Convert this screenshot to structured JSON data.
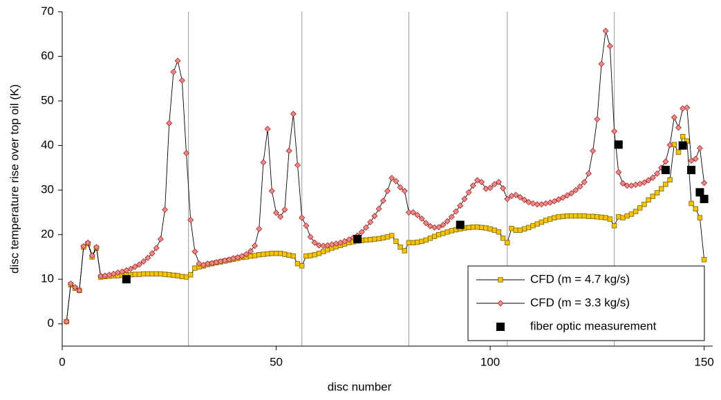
{
  "chart_data": {
    "type": "line",
    "xlabel": "disc number",
    "ylabel": "disc temperature rise over top oil (K)",
    "x": [
      1,
      2,
      3,
      4,
      5,
      6,
      7,
      8,
      9,
      10,
      11,
      12,
      13,
      14,
      15,
      16,
      17,
      18,
      19,
      20,
      21,
      22,
      23,
      24,
      25,
      26,
      27,
      28,
      29,
      30,
      31,
      32,
      33,
      34,
      35,
      36,
      37,
      38,
      39,
      40,
      41,
      42,
      43,
      44,
      45,
      46,
      47,
      48,
      49,
      50,
      51,
      52,
      53,
      54,
      55,
      56,
      57,
      58,
      59,
      60,
      61,
      62,
      63,
      64,
      65,
      66,
      67,
      68,
      69,
      70,
      71,
      72,
      73,
      74,
      75,
      76,
      77,
      78,
      79,
      80,
      81,
      82,
      83,
      84,
      85,
      86,
      87,
      88,
      89,
      90,
      91,
      92,
      93,
      94,
      95,
      96,
      97,
      98,
      99,
      100,
      101,
      102,
      103,
      104,
      105,
      106,
      107,
      108,
      109,
      110,
      111,
      112,
      113,
      114,
      115,
      116,
      117,
      118,
      119,
      120,
      121,
      122,
      123,
      124,
      125,
      126,
      127,
      128,
      129,
      130,
      131,
      132,
      133,
      134,
      135,
      136,
      137,
      138,
      139,
      140,
      141,
      142,
      143,
      144,
      145,
      146,
      147,
      148,
      149,
      150
    ],
    "series": [
      {
        "name": "CFD (m = 4.7 kg/s)",
        "color": "#f5c400",
        "edge": "#7a6000",
        "marker": "square",
        "values": [
          0.5,
          8.8,
          8,
          7.5,
          17.2,
          18,
          15,
          17,
          10.5,
          10.6,
          10.7,
          10.8,
          10.8,
          10.9,
          11,
          11,
          11.1,
          11.1,
          11.2,
          11.2,
          11.2,
          11.2,
          11.2,
          11.1,
          11,
          10.9,
          10.8,
          10.6,
          10.5,
          11,
          12.5,
          12.8,
          13,
          13.3,
          13.5,
          13.7,
          13.9,
          14.1,
          14.3,
          14.5,
          14.7,
          14.9,
          15,
          15.2,
          15.3,
          15.5,
          15.6,
          15.7,
          15.8,
          15.8,
          15.8,
          15.6,
          15.4,
          15.2,
          13.5,
          13,
          15.2,
          15.3,
          15.5,
          15.8,
          16.2,
          16.6,
          17,
          17.3,
          17.6,
          17.9,
          18.2,
          18.4,
          18.6,
          18.7,
          18.8,
          18.9,
          19,
          19.1,
          19.3,
          19.5,
          19.8,
          18.5,
          17.2,
          16.4,
          18.2,
          18.2,
          18.3,
          18.5,
          18.8,
          19.2,
          19.6,
          20,
          20.3,
          20.6,
          20.9,
          21.1,
          21.3,
          21.5,
          21.6,
          21.7,
          21.7,
          21.6,
          21.5,
          21.3,
          21,
          20.6,
          19.2,
          18.2,
          21.4,
          21,
          21,
          21.3,
          21.6,
          22,
          22.4,
          22.8,
          23.2,
          23.5,
          23.8,
          24,
          24.1,
          24.2,
          24.2,
          24.2,
          24.2,
          24.2,
          24.1,
          24.1,
          24,
          23.9,
          23.8,
          23.5,
          22,
          24,
          23.8,
          24.2,
          24.6,
          25.2,
          26,
          26.8,
          27.8,
          28.6,
          29.4,
          30.3,
          31.3,
          32.3,
          40.2,
          38.5,
          42,
          41,
          27,
          25.8,
          23.8,
          14.4
        ]
      },
      {
        "name": "CFD (m = 3.3 kg/s)",
        "color": "#f08a8a",
        "edge": "#a02828",
        "marker": "diamond",
        "values": [
          0.5,
          9,
          8.2,
          7.5,
          17.4,
          18.2,
          15.3,
          17.2,
          10.7,
          10.8,
          11,
          11.2,
          11.5,
          11.7,
          12,
          12.3,
          12.8,
          13.3,
          14,
          14.8,
          15.8,
          17,
          19,
          25.6,
          45,
          56.5,
          59,
          54.6,
          38.3,
          23.3,
          16.2,
          13.5,
          13.2,
          13.5,
          13.6,
          13.8,
          14,
          14.2,
          14.4,
          14.7,
          14.9,
          15.2,
          15.6,
          16.3,
          17.5,
          21.3,
          36.2,
          43.7,
          29.8,
          24.9,
          24,
          25.6,
          38.8,
          47.1,
          35.6,
          23.8,
          22,
          19.5,
          18.2,
          17.6,
          17.5,
          17.6,
          17.8,
          18,
          18.2,
          18.5,
          18.9,
          19.3,
          19.8,
          20.6,
          21.6,
          22.8,
          24.2,
          25.8,
          27.6,
          29.8,
          32.7,
          32,
          30.6,
          29.8,
          25,
          25,
          24.4,
          23.6,
          22.6,
          21.9,
          21.6,
          21.7,
          22.2,
          23,
          24,
          25.2,
          26.5,
          28,
          29.5,
          31,
          32.2,
          31.8,
          30.3,
          30.5,
          31.3,
          31.8,
          30.4,
          28,
          28.7,
          28.9,
          28.4,
          27.8,
          27.3,
          27,
          26.8,
          26.8,
          27,
          27.2,
          27.5,
          27.9,
          28.3,
          28.8,
          29.3,
          30,
          30.8,
          31.8,
          33.7,
          38.8,
          45.9,
          58.3,
          65.7,
          62.3,
          43.2,
          34,
          31.5,
          31,
          31,
          31.2,
          31.4,
          31.7,
          32.2,
          32.8,
          33.7,
          35,
          36.4,
          40.1,
          46.3,
          44,
          48.3,
          48.5,
          36.6,
          37,
          39.4,
          31.6
        ]
      },
      {
        "name": "fiber optic measurement",
        "color": "#000000",
        "marker": "big-square",
        "line": false,
        "x": [
          15,
          69,
          93,
          130,
          141,
          145,
          147,
          149,
          150
        ],
        "values": [
          10,
          19,
          22.2,
          40.2,
          34.5,
          40,
          34.5,
          29.5,
          28
        ]
      }
    ],
    "separators": [
      29.5,
      56,
      81,
      104,
      129
    ],
    "xlim": [
      0,
      152
    ],
    "xticks": [
      0,
      50,
      100,
      150
    ],
    "ylim": [
      -5,
      70
    ],
    "yticks": [
      0,
      10,
      20,
      30,
      40,
      50,
      60,
      70
    ],
    "legend": "lower right"
  }
}
